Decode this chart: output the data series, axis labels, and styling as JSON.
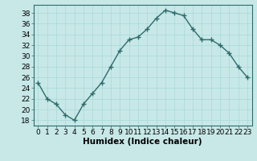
{
  "x": [
    0,
    1,
    2,
    3,
    4,
    5,
    6,
    7,
    8,
    9,
    10,
    11,
    12,
    13,
    14,
    15,
    16,
    17,
    18,
    19,
    20,
    21,
    22,
    23
  ],
  "y": [
    25,
    22,
    21,
    19,
    18,
    21,
    23,
    25,
    28,
    31,
    33,
    33.5,
    35,
    37,
    38.5,
    38,
    37.5,
    35,
    33,
    33,
    32,
    30.5,
    28,
    26
  ],
  "line_color": "#2e6b6b",
  "marker": "+",
  "bg_color": "#c8e8e8",
  "grid_color": "#b0d8d8",
  "ylabel_ticks": [
    18,
    20,
    22,
    24,
    26,
    28,
    30,
    32,
    34,
    36,
    38
  ],
  "ylim": [
    17.0,
    39.5
  ],
  "xlim": [
    -0.5,
    23.5
  ],
  "xlabel": "Humidex (Indice chaleur)",
  "xlabel_fontsize": 7.5,
  "tick_fontsize": 6.5,
  "line_width": 1.0,
  "marker_size": 4
}
